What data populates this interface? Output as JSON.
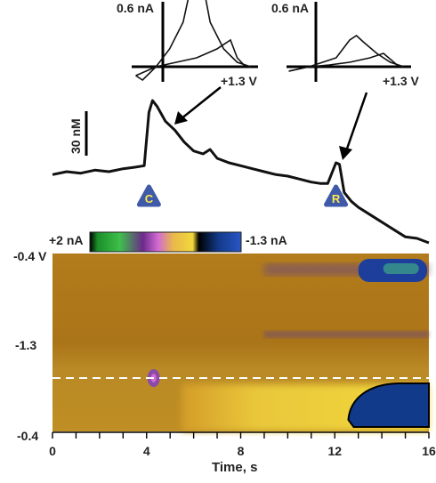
{
  "chart_data": [
    {
      "type": "line",
      "panel": "concentration-trace",
      "scale_bar": {
        "label": "30 nM",
        "value": 30,
        "unit": "nM"
      },
      "x": [
        0,
        0.6,
        1.2,
        1.8,
        2.4,
        3.0,
        3.5,
        3.9,
        4.1,
        4.25,
        4.45,
        4.8,
        5.2,
        5.6,
        6.0,
        6.4,
        6.7,
        7.0,
        7.5,
        8.0,
        8.5,
        9.0,
        9.5,
        10.0,
        10.5,
        11.0,
        11.4,
        11.7,
        11.9,
        12.05,
        12.2,
        12.4,
        12.7,
        13.0,
        13.4,
        13.8,
        14.2,
        14.6,
        15.0,
        15.5,
        16.0
      ],
      "y": [
        -2,
        0,
        -1,
        1,
        0,
        2,
        3,
        4,
        40,
        48,
        44,
        34,
        28,
        20,
        14,
        12,
        15,
        9,
        6,
        4,
        2,
        0,
        -2,
        -3,
        -5,
        -7,
        -8,
        -8,
        0,
        6,
        5,
        -14,
        -20,
        -24,
        -28,
        -32,
        -36,
        -40,
        -44,
        -45,
        -48
      ],
      "annotations": [
        {
          "label": "C",
          "x": 4.1
        },
        {
          "label": "R",
          "x": 12.05
        }
      ]
    },
    {
      "type": "line",
      "panel": "inset-voltammogram-left",
      "y_label": "0.6 nA",
      "x_label": "+1.3 V",
      "series": [
        {
          "x": [
            -0.4,
            -0.1,
            0.2,
            0.5,
            0.8,
            1.0,
            1.1,
            1.2,
            1.3
          ],
          "y": [
            -0.1,
            0.0,
            0.05,
            0.1,
            0.2,
            0.3,
            0.1,
            0.02,
            0.0
          ]
        },
        {
          "x": [
            1.3,
            1.1,
            0.9,
            0.7,
            0.6,
            0.5,
            0.4,
            0.3,
            0.1,
            -0.1,
            -0.3,
            -0.4
          ],
          "y": [
            0.0,
            0.05,
            0.2,
            0.5,
            0.9,
            1.05,
            0.85,
            0.5,
            0.2,
            0.0,
            -0.15,
            -0.1
          ]
        }
      ]
    },
    {
      "type": "line",
      "panel": "inset-voltammogram-right",
      "y_label": "0.6 nA",
      "x_label": "+1.3 V",
      "series": [
        {
          "x": [
            -0.4,
            -0.1,
            0.2,
            0.5,
            0.8,
            1.0,
            1.2,
            1.3
          ],
          "y": [
            -0.05,
            0.0,
            0.02,
            0.05,
            0.1,
            0.15,
            0.02,
            0.0
          ]
        },
        {
          "x": [
            1.3,
            1.1,
            0.9,
            0.7,
            0.6,
            0.5,
            0.4,
            0.3,
            0.1,
            -0.1,
            -0.4
          ],
          "y": [
            0.0,
            0.05,
            0.15,
            0.28,
            0.35,
            0.3,
            0.2,
            0.1,
            0.05,
            0.0,
            -0.05
          ]
        }
      ]
    },
    {
      "type": "heatmap",
      "panel": "color-plot",
      "xlabel": "Time, s",
      "xlim": [
        0,
        16
      ],
      "xticks": [
        "0",
        "4",
        "8",
        "12",
        "16"
      ],
      "y_tick_labels": [
        "-0.4 V",
        "-1.3",
        "-0.4"
      ],
      "colorbar": {
        "max_label": "+2 nA",
        "min_label": "-1.3 nA",
        "max": 2,
        "min": -1.3,
        "unit": "nA"
      },
      "dashed_line": "horizontal, across full width",
      "bands": [
        {
          "kind": "background",
          "value": 0.15
        },
        {
          "kind": "lower-band",
          "value": 0.55,
          "x_start": 5.5
        },
        {
          "kind": "stripe",
          "value": -0.35,
          "x_start": 9.0
        },
        {
          "kind": "stripe",
          "value": -0.25,
          "x_start": 9.0
        },
        {
          "kind": "blob",
          "value": -1.0,
          "x_start": 13.0
        },
        {
          "kind": "blob",
          "value": -1.3,
          "x_start": 12.5
        },
        {
          "kind": "spot",
          "value": -0.8,
          "x": 4.3
        }
      ]
    }
  ],
  "colors": {
    "trace": "#111111",
    "marker_fill": "#3f5aa8",
    "marker_text": "#ffe94a",
    "dashed_line": "#ffffff",
    "colorbar": [
      "#000000",
      "#1a8f2a",
      "#3fbf4a",
      "#6b2a8a",
      "#d26ad3",
      "#e8b84a",
      "#f2d83a",
      "#000000",
      "#123a8a",
      "#2a55c4"
    ]
  }
}
